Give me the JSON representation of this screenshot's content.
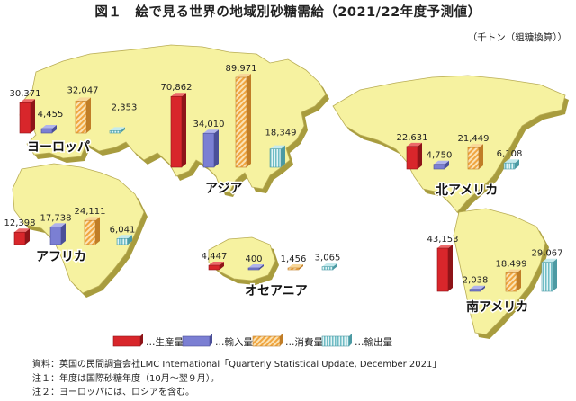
{
  "title": "図１　絵で見る世界の地域別砂糖需給（2021/22年度予測値）",
  "unit": "（千トン（粗糖換算））",
  "notes": [
    "資料：英国の民間調査会社LMC International「Quarterly Statistical Update, December 2021」",
    "注１：年度は国際砂糖年度（10月～翌９月）。",
    "注２：ヨーロッパには、ロシアを含む。"
  ],
  "colors": {
    "production": "#d8262b",
    "import": "#7b7fd3",
    "consumption": "#f3b45a",
    "export": "#8fd0d6",
    "continent": "#f6f2a0",
    "continent_edge": "#b9ad55"
  },
  "chart_data": {
    "type": "bar",
    "categories": [
      "ヨーロッパ",
      "アジア",
      "北アメリカ",
      "アフリカ",
      "オセアニア",
      "南アメリカ"
    ],
    "series": [
      {
        "name": "生産量",
        "values": [
          30371,
          70862,
          22631,
          12398,
          4447,
          43153
        ]
      },
      {
        "name": "輸入量",
        "values": [
          4455,
          34010,
          4750,
          17738,
          400,
          2038
        ]
      },
      {
        "name": "消費量",
        "values": [
          32047,
          89971,
          21449,
          24111,
          1456,
          18499
        ]
      },
      {
        "name": "輸出量",
        "values": [
          2353,
          18349,
          6108,
          6041,
          3065,
          29067
        ]
      }
    ],
    "value_labels": {
      "ヨーロッパ": [
        "30,371",
        "4,455",
        "32,047",
        "2,353"
      ],
      "アジア": [
        "70,862",
        "34,010",
        "89,971",
        "18,349"
      ],
      "北アメリカ": [
        "22,631",
        "4,750",
        "21,449",
        "6,108"
      ],
      "アフリカ": [
        "12,398",
        "17,738",
        "24,111",
        "6,041"
      ],
      "オセアニア": [
        "4,447",
        "400",
        "1,456",
        "3,065"
      ],
      "南アメリカ": [
        "43,153",
        "2,038",
        "18,499",
        "29,067"
      ]
    },
    "legend": [
      "…生産量",
      "…輸入量",
      "…消費量",
      "…輸出量"
    ],
    "legend_position": "bottom"
  }
}
